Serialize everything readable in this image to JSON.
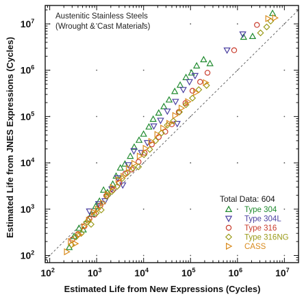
{
  "chart_data": {
    "type": "scatter",
    "title": "",
    "xlabel": "Estimated Life from New Expressions (Cycles)",
    "ylabel": "Estimated Life from JNES Expressions (Cycles)",
    "xscale": "log",
    "yscale": "log",
    "xlim": [
      80,
      20000000
    ],
    "ylim": [
      70,
      25000000
    ],
    "x_ticks": [
      100,
      1000,
      10000,
      100000,
      1000000,
      10000000
    ],
    "y_ticks": [
      100,
      1000,
      10000,
      100000,
      1000000,
      10000000
    ],
    "x_tick_labels": [
      {
        "base": "10",
        "exp": "2"
      },
      {
        "base": "10",
        "exp": "3"
      },
      {
        "base": "10",
        "exp": "4"
      },
      {
        "base": "10",
        "exp": "5"
      },
      {
        "base": "10",
        "exp": "6"
      },
      {
        "base": "10",
        "exp": "7"
      }
    ],
    "y_tick_labels": [
      {
        "base": "10",
        "exp": "2"
      },
      {
        "base": "10",
        "exp": "3"
      },
      {
        "base": "10",
        "exp": "4"
      },
      {
        "base": "10",
        "exp": "5"
      },
      {
        "base": "10",
        "exp": "6"
      },
      {
        "base": "10",
        "exp": "7"
      }
    ],
    "grid": "dotted points at decade intersections",
    "reference_line": {
      "style": "dashed",
      "relation": "y = x"
    },
    "annotation": [
      "Austenitic Stainless Steels",
      "(Wrought & Cast Materials)"
    ],
    "legend": {
      "position": "bottom-right",
      "title": "Total Data: 604"
    },
    "series": [
      {
        "name": "Type 304",
        "marker": "triangle-up",
        "color": "#1f8a2e",
        "points": [
          [
            260,
            150
          ],
          [
            330,
            260
          ],
          [
            420,
            390
          ],
          [
            520,
            360
          ],
          [
            650,
            600
          ],
          [
            780,
            780
          ],
          [
            950,
            1150
          ],
          [
            1150,
            1500
          ],
          [
            1400,
            2600
          ],
          [
            1700,
            2300
          ],
          [
            2200,
            3500
          ],
          [
            2600,
            5200
          ],
          [
            3200,
            7800
          ],
          [
            4000,
            9500
          ],
          [
            5200,
            14000
          ],
          [
            6300,
            22000
          ],
          [
            8000,
            31000
          ],
          [
            10000,
            42000
          ],
          [
            13000,
            60000
          ],
          [
            16000,
            88000
          ],
          [
            21000,
            120000
          ],
          [
            27000,
            165000
          ],
          [
            35000,
            230000
          ],
          [
            46000,
            350000
          ],
          [
            60000,
            480000
          ],
          [
            80000,
            700000
          ],
          [
            105000,
            880000
          ],
          [
            135000,
            1250000
          ],
          [
            190000,
            1700000
          ],
          [
            260000,
            1400000
          ],
          [
            1350000,
            5200000
          ],
          [
            2100000,
            5400000
          ],
          [
            5600000,
            17000000
          ]
        ]
      },
      {
        "name": "Type 304L",
        "marker": "triangle-down",
        "color": "#4a3fa0",
        "points": [
          [
            700,
            900
          ],
          [
            1100,
            1300
          ],
          [
            1500,
            1500
          ],
          [
            2100,
            2700
          ],
          [
            2800,
            4700
          ],
          [
            3600,
            3300
          ],
          [
            4700,
            9000
          ],
          [
            6200,
            18000
          ],
          [
            9000,
            16500
          ],
          [
            12000,
            27000
          ],
          [
            16500,
            62000
          ],
          [
            23000,
            82000
          ],
          [
            32000,
            130000
          ],
          [
            48000,
            210000
          ],
          [
            52000,
            70000
          ],
          [
            70000,
            380000
          ],
          [
            95000,
            560000
          ],
          [
            125000,
            760000
          ],
          [
            600000,
            2700000
          ],
          [
            1300000,
            6000000
          ]
        ]
      },
      {
        "name": "Type 316",
        "marker": "circle",
        "color": "#c83a2a",
        "points": [
          [
            300,
            220
          ],
          [
            400,
            290
          ],
          [
            550,
            430
          ],
          [
            700,
            620
          ],
          [
            900,
            760
          ],
          [
            1200,
            1200
          ],
          [
            1600,
            1950
          ],
          [
            2200,
            2600
          ],
          [
            3000,
            3700
          ],
          [
            4100,
            5900
          ],
          [
            5600,
            7200
          ],
          [
            7800,
            10500
          ],
          [
            10500,
            16500
          ],
          [
            15000,
            25000
          ],
          [
            21000,
            36000
          ],
          [
            29000,
            47000
          ],
          [
            40000,
            68000
          ],
          [
            56000,
            125000
          ],
          [
            78000,
            195000
          ],
          [
            110000,
            360000
          ],
          [
            160000,
            560000
          ],
          [
            230000,
            880000
          ],
          [
            850000,
            2700000
          ],
          [
            2600000,
            9500000
          ]
        ]
      },
      {
        "name": "Type 316NG",
        "marker": "diamond",
        "color": "#9a9a18",
        "points": [
          [
            290,
            170
          ],
          [
            360,
            250
          ],
          [
            470,
            300
          ],
          [
            610,
            520
          ],
          [
            760,
            470
          ],
          [
            980,
            820
          ],
          [
            1250,
            960
          ],
          [
            1650,
            1900
          ],
          [
            2100,
            2400
          ],
          [
            2750,
            3100
          ],
          [
            3500,
            4600
          ],
          [
            4500,
            6100
          ],
          [
            5900,
            7700
          ],
          [
            7800,
            8200
          ],
          [
            10200,
            15000
          ],
          [
            13500,
            19500
          ],
          [
            18000,
            30000
          ],
          [
            24000,
            44000
          ],
          [
            32000,
            65000
          ],
          [
            43000,
            80000
          ],
          [
            58000,
            125000
          ],
          [
            80000,
            180000
          ],
          [
            110000,
            250000
          ],
          [
            150000,
            380000
          ],
          [
            220000,
            470000
          ],
          [
            3100000,
            6400000
          ],
          [
            4200000,
            8600000
          ],
          [
            5100000,
            11500000
          ]
        ]
      },
      {
        "name": "CASS",
        "marker": "triangle-right",
        "color": "#d98a1c",
        "points": [
          [
            230,
            120
          ],
          [
            280,
            200
          ],
          [
            350,
            180
          ],
          [
            430,
            280
          ],
          [
            540,
            420
          ],
          [
            680,
            580
          ],
          [
            860,
            860
          ],
          [
            1050,
            1000
          ],
          [
            1350,
            1350
          ],
          [
            1700,
            2100
          ],
          [
            2200,
            2950
          ],
          [
            2900,
            4300
          ],
          [
            3700,
            5100
          ],
          [
            4800,
            7600
          ],
          [
            6300,
            9700
          ],
          [
            8200,
            14000
          ],
          [
            11000,
            20500
          ],
          [
            14500,
            29000
          ],
          [
            19500,
            41000
          ],
          [
            26000,
            56000
          ],
          [
            35000,
            71000
          ],
          [
            47000,
            105000
          ],
          [
            64000,
            152000
          ],
          [
            88000,
            210000
          ],
          [
            130000,
            330000
          ],
          [
            210000,
            540000
          ],
          [
            4500000,
            13000000
          ],
          [
            6300000,
            13500000
          ]
        ]
      }
    ]
  }
}
